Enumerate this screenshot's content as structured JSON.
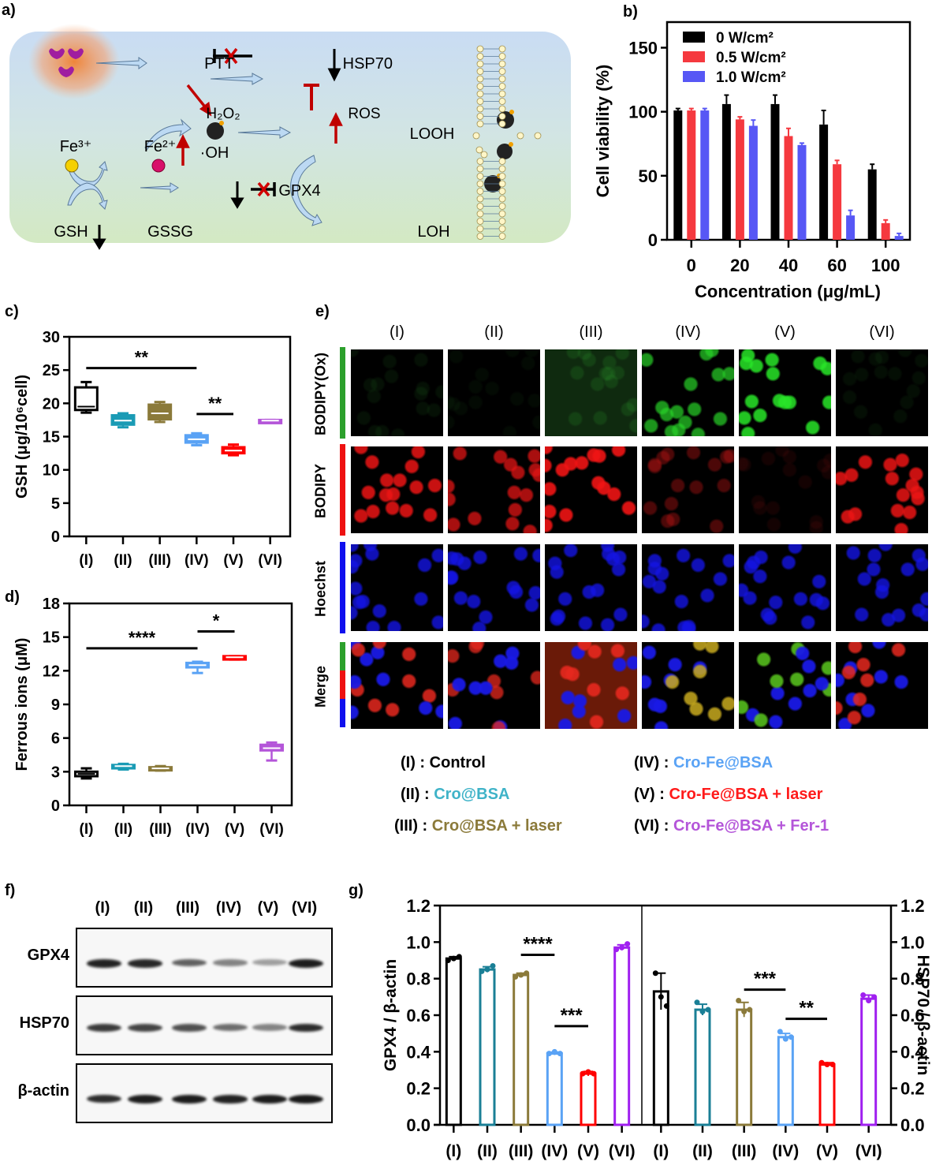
{
  "panels": {
    "a": "a)",
    "b": "b)",
    "c": "c)",
    "d": "d)",
    "e": "e)",
    "f": "f)",
    "g": "g)"
  },
  "diagram": {
    "labels": {
      "ptt": "PTT",
      "hsp70": "HSP70",
      "h2o2": "H₂O₂",
      "ros": "ROS",
      "oh": "·OH",
      "fe3": "Fe³⁺",
      "fe2": "Fe²⁺",
      "looh": "LOOH",
      "gpx4": "GPX4",
      "gsh": "GSH",
      "gssg": "GSSG",
      "loh": "LOH"
    },
    "icons": [
      "nanoparticle-cluster-icon",
      "hollow-arrow-icon",
      "inhibit-bar-icon",
      "cross-mark-icon",
      "down-arrow-icon",
      "up-arrow-icon",
      "bomb-icon",
      "iron-ion-icon",
      "lipid-bilayer-icon",
      "curved-arrow-icon"
    ]
  },
  "groups": {
    "ids": [
      "(I)",
      "(II)",
      "(III)",
      "(IV)",
      "(V)",
      "(VI)"
    ],
    "names": [
      "Control",
      "Cro@BSA",
      "Cro@BSA + laser",
      "Cro-Fe@BSA",
      "Cro-Fe@BSA + laser",
      "Cro-Fe@BSA + Fer-1"
    ],
    "colors": [
      "#000000",
      "#1a9bb5",
      "#8b7a3a",
      "#5aa3f5",
      "#ff0000",
      "#b455d9"
    ],
    "legend_colors": [
      "#000000",
      "#3fb3c8",
      "#8b7a3a",
      "#5aa3f5",
      "#ff1a1a",
      "#b455d9"
    ],
    "legend_sep": " : "
  },
  "chart_data": [
    {
      "id": "b",
      "type": "bar",
      "title": "",
      "xlabel": "Concentration (μg/mL)",
      "ylabel": "Cell viability (%)",
      "categories": [
        "0",
        "20",
        "40",
        "60",
        "100"
      ],
      "ylim": [
        0,
        170
      ],
      "yticks": [
        0,
        50,
        100,
        150
      ],
      "legend_position": "top-left",
      "series": [
        {
          "name": "0 W/cm²",
          "color": "#000000",
          "values": [
            101,
            106,
            106,
            90,
            55
          ],
          "errors": [
            1.5,
            7,
            7,
            11,
            4
          ]
        },
        {
          "name": "0.5 W/cm²",
          "color": "#f5393f",
          "values": [
            101,
            94,
            81,
            59,
            13
          ],
          "errors": [
            1.5,
            2,
            6,
            3,
            2.5
          ]
        },
        {
          "name": "1.0 W/cm²",
          "color": "#5757f5",
          "values": [
            101,
            89,
            74,
            19,
            3
          ],
          "errors": [
            1.5,
            4.5,
            1.5,
            4,
            2
          ]
        }
      ]
    },
    {
      "id": "c",
      "type": "box",
      "xlabel": "",
      "ylabel": "GSH (μg/10⁶cell)",
      "ylim": [
        0,
        30
      ],
      "yticks": [
        0,
        5,
        10,
        15,
        20,
        25,
        30
      ],
      "categories": [
        "(I)",
        "(II)",
        "(III)",
        "(IV)",
        "(V)",
        "(VI)"
      ],
      "boxes": [
        {
          "min": 18.6,
          "q1": 19.0,
          "median": 19.5,
          "q3": 22.4,
          "max": 23.2
        },
        {
          "min": 16.4,
          "q1": 16.8,
          "median": 17.4,
          "q3": 18.2,
          "max": 18.5
        },
        {
          "min": 17.2,
          "q1": 17.6,
          "median": 18.5,
          "q3": 19.8,
          "max": 20.2
        },
        {
          "min": 13.7,
          "q1": 14.1,
          "median": 14.6,
          "q3": 15.2,
          "max": 15.5
        },
        {
          "min": 12.2,
          "q1": 12.5,
          "median": 12.9,
          "q3": 13.4,
          "max": 13.8
        },
        {
          "min": 17.2,
          "q1": 17.2,
          "median": 17.4,
          "q3": 17.5,
          "max": 17.5
        }
      ],
      "significance": [
        {
          "from": "(I)",
          "to": "(IV)",
          "label": "**",
          "y": 25.3
        },
        {
          "from": "(IV)",
          "to": "(V)",
          "label": "**",
          "y": 18.4
        }
      ]
    },
    {
      "id": "d",
      "type": "box",
      "xlabel": "",
      "ylabel": "Ferrous ions (μM)",
      "ylim": [
        0,
        18
      ],
      "yticks": [
        0,
        3,
        6,
        9,
        12,
        15,
        18
      ],
      "categories": [
        "(I)",
        "(II)",
        "(III)",
        "(IV)",
        "(V)",
        "(VI)"
      ],
      "boxes": [
        {
          "min": 2.4,
          "q1": 2.6,
          "median": 2.8,
          "q3": 3.0,
          "max": 3.3
        },
        {
          "min": 3.2,
          "q1": 3.3,
          "median": 3.5,
          "q3": 3.6,
          "max": 3.7
        },
        {
          "min": 3.1,
          "q1": 3.2,
          "median": 3.3,
          "q3": 3.4,
          "max": 3.5
        },
        {
          "min": 11.8,
          "q1": 12.3,
          "median": 12.5,
          "q3": 12.7,
          "max": 12.8
        },
        {
          "min": 13.0,
          "q1": 13.0,
          "median": 13.2,
          "q3": 13.3,
          "max": 13.3
        },
        {
          "min": 4.0,
          "q1": 4.9,
          "median": 5.1,
          "q3": 5.4,
          "max": 5.6
        }
      ],
      "significance": [
        {
          "from": "(I)",
          "to": "(IV)",
          "label": "****",
          "y": 14.0
        },
        {
          "from": "(IV)",
          "to": "(V)",
          "label": "*",
          "y": 15.5
        }
      ]
    },
    {
      "id": "g",
      "type": "bar",
      "xlabel": "",
      "ylabel_left": "GPX4 / β-actin",
      "ylabel_right": "HSP70 / β-actin",
      "ylim": [
        0,
        1.2
      ],
      "yticks": [
        "0.0",
        "0.2",
        "0.4",
        "0.6",
        "0.8",
        "1.0",
        "1.2"
      ],
      "categories": [
        "(I)",
        "(II)",
        "(III)",
        "(IV)",
        "(V)",
        "(VI)"
      ],
      "series": [
        {
          "name": "GPX4 / β-actin",
          "axis": "left",
          "values": [
            0.91,
            0.85,
            0.82,
            0.39,
            0.28,
            0.97
          ],
          "errors": [
            0.01,
            0.015,
            0.01,
            0.008,
            0.012,
            0.015
          ],
          "points": [
            [
              0.9,
              0.91,
              0.92
            ],
            [
              0.84,
              0.85,
              0.87
            ],
            [
              0.81,
              0.82,
              0.83
            ],
            [
              0.39,
              0.4,
              0.39
            ],
            [
              0.28,
              0.29,
              0.28
            ],
            [
              0.96,
              0.97,
              0.99
            ]
          ]
        },
        {
          "name": "HSP70 / β-actin",
          "axis": "right",
          "values": [
            0.73,
            0.63,
            0.63,
            0.48,
            0.33,
            0.69
          ],
          "errors": [
            0.1,
            0.03,
            0.04,
            0.02,
            0.01,
            0.02
          ],
          "points": [
            [
              0.83,
              0.7,
              0.65
            ],
            [
              0.67,
              0.62,
              0.63
            ],
            [
              0.68,
              0.62,
              0.63
            ],
            [
              0.51,
              0.47,
              0.48
            ],
            [
              0.34,
              0.33,
              0.33
            ],
            [
              0.71,
              0.68,
              0.7
            ]
          ]
        }
      ],
      "significance": [
        {
          "series": 0,
          "from": "(III)",
          "to": "(IV)",
          "label": "****",
          "y": 0.93
        },
        {
          "series": 0,
          "from": "(IV)",
          "to": "(V)",
          "label": "***",
          "y": 0.54
        },
        {
          "series": 1,
          "from": "(III)",
          "to": "(IV)",
          "label": "***",
          "y": 0.74
        },
        {
          "series": 1,
          "from": "(IV)",
          "to": "(V)",
          "label": "**",
          "y": 0.58
        }
      ]
    }
  ],
  "microscopy": {
    "rows": [
      "BODIPY(Ox)",
      "BODIPY",
      "Hoechst",
      "Merge"
    ],
    "columns": [
      "(I)",
      "(II)",
      "(III)",
      "(IV)",
      "(V)",
      "(VI)"
    ],
    "intensity": {
      "green": [
        0.12,
        0.08,
        0.22,
        0.7,
        0.85,
        0.1
      ],
      "red": [
        0.85,
        0.75,
        0.9,
        0.4,
        0.12,
        0.85
      ],
      "blue": [
        0.8,
        0.8,
        0.8,
        0.8,
        0.8,
        0.8
      ]
    }
  },
  "western": {
    "columns": [
      "(I)",
      "(II)",
      "(III)",
      "(IV)",
      "(V)",
      "(VI)"
    ],
    "rows": [
      {
        "label": "GPX4",
        "intensity": [
          0.92,
          0.9,
          0.65,
          0.5,
          0.38,
          0.95
        ]
      },
      {
        "label": "HSP70",
        "intensity": [
          0.82,
          0.78,
          0.72,
          0.6,
          0.5,
          0.88
        ]
      },
      {
        "label": "β-actin",
        "intensity": [
          0.88,
          0.95,
          0.95,
          0.92,
          0.95,
          0.97
        ]
      }
    ]
  }
}
